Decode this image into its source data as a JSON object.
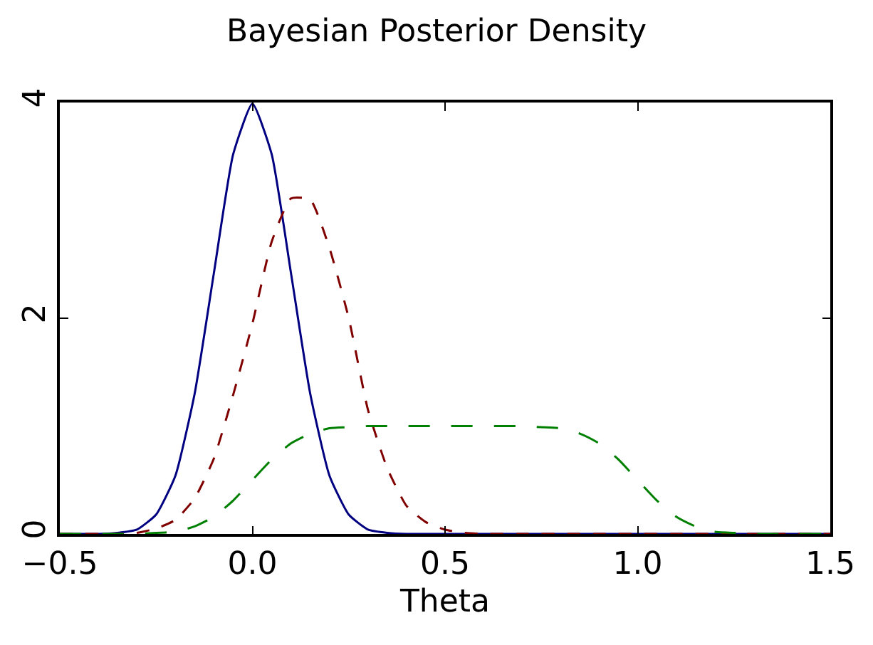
{
  "chart_data": {
    "type": "line",
    "title": "Bayesian Posterior Density",
    "xlabel": "Theta",
    "x": [
      -0.5,
      -0.45,
      -0.4,
      -0.35,
      -0.3,
      -0.25,
      -0.2,
      -0.15,
      -0.1,
      -0.05,
      0,
      0.05,
      0.1,
      0.15,
      0.2,
      0.25,
      0.3,
      0.35,
      0.4,
      0.45,
      0.5,
      0.55,
      0.6,
      0.65,
      0.7,
      0.75,
      0.8,
      0.85,
      0.9,
      0.95,
      1.0,
      1.05,
      1.1,
      1.15,
      1.2,
      1.25,
      1.3,
      1.35,
      1.4,
      1.45,
      1.5
    ],
    "series": [
      {
        "color": "#000080",
        "line_style": "solid",
        "values": [
          0,
          0,
          0,
          0.01,
          0.04,
          0.18,
          0.54,
          1.3,
          2.42,
          3.52,
          3.99,
          3.52,
          2.42,
          1.3,
          0.54,
          0.18,
          0.04,
          0.01,
          0,
          0,
          0,
          0,
          0,
          0,
          0,
          0,
          0,
          0,
          0,
          0,
          0,
          0,
          0,
          0,
          0,
          0,
          0,
          0,
          0,
          0,
          0
        ]
      },
      {
        "color": "#800000",
        "line_style": "dotted",
        "values": [
          0,
          0,
          0,
          0,
          0.01,
          0.05,
          0.13,
          0.33,
          0.7,
          1.29,
          1.95,
          2.71,
          3.11,
          3.1,
          2.65,
          2.0,
          1.15,
          0.61,
          0.26,
          0.11,
          0.04,
          0.01,
          0,
          0,
          0,
          0,
          0,
          0,
          0,
          0,
          0,
          0,
          0,
          0,
          0,
          0,
          0,
          0,
          0,
          0,
          0
        ]
      },
      {
        "color": "#008000",
        "line_style": "dashed",
        "values": [
          0,
          0,
          0,
          0,
          0,
          0.01,
          0.02,
          0.07,
          0.16,
          0.31,
          0.5,
          0.69,
          0.84,
          0.93,
          0.98,
          0.99,
          1.0,
          1.0,
          1.0,
          1.0,
          1.0,
          1.0,
          1.0,
          1.0,
          1.0,
          0.99,
          0.98,
          0.93,
          0.84,
          0.69,
          0.5,
          0.31,
          0.16,
          0.07,
          0.02,
          0.01,
          0,
          0,
          0,
          0,
          0
        ]
      }
    ],
    "xlim": [
      -0.5,
      1.5
    ],
    "xticks": [
      {
        "value": -0.5,
        "label": "−0.5"
      },
      {
        "value": 0,
        "label": "0.0"
      },
      {
        "value": 0.5,
        "label": "0.5"
      },
      {
        "value": 1.0,
        "label": "1.0"
      },
      {
        "value": 1.5,
        "label": "1.5"
      }
    ],
    "ylim": [
      0,
      4
    ],
    "yticks": [
      0,
      2,
      4
    ],
    "marker": "none"
  }
}
